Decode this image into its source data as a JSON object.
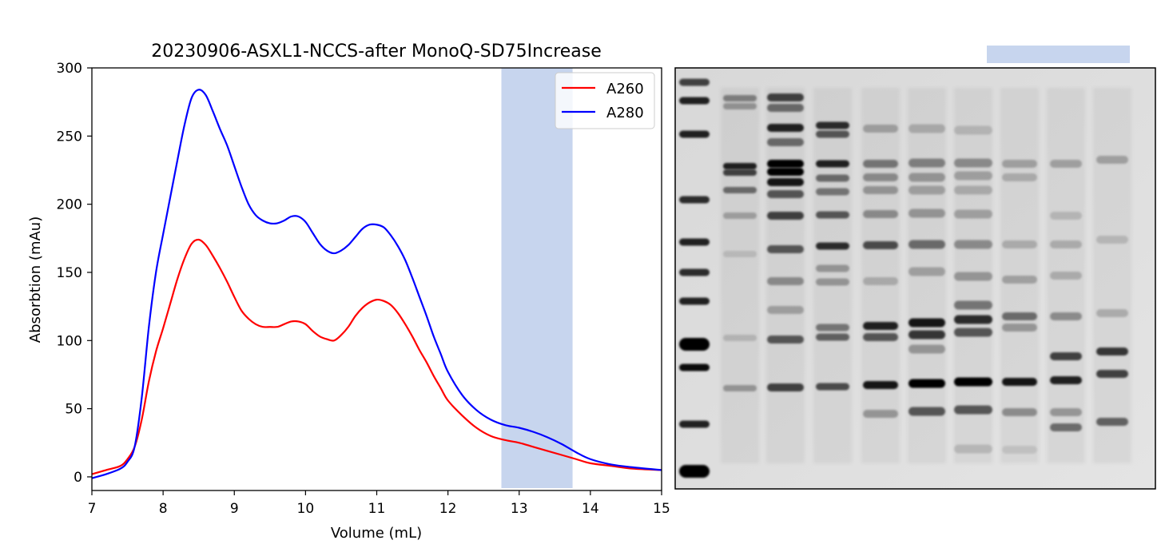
{
  "colors": {
    "a260": "#ff0000",
    "a280": "#0000ff",
    "highlight": "#c7d5ee"
  },
  "chart_data": [
    {
      "type": "line",
      "title": "20230906-ASXL1-NCCS-after MonoQ-SD75Increase",
      "xlabel": "Volume (mL)",
      "ylabel": "Absorbtion (mAu)",
      "xlim": [
        7,
        15
      ],
      "ylim": [
        -10,
        300
      ],
      "x_ticks": [
        7,
        8,
        9,
        10,
        11,
        12,
        13,
        14,
        15
      ],
      "y_ticks": [
        0,
        50,
        100,
        150,
        200,
        250,
        300
      ],
      "grid": false,
      "legend": "top-right",
      "highlight_region": [
        12.75,
        13.75
      ],
      "series": [
        {
          "name": "A260",
          "color": "#ff0000",
          "x": [
            7.0,
            7.2,
            7.4,
            7.5,
            7.6,
            7.7,
            7.8,
            7.9,
            8.0,
            8.1,
            8.2,
            8.3,
            8.4,
            8.5,
            8.6,
            8.7,
            8.8,
            8.9,
            9.0,
            9.1,
            9.2,
            9.3,
            9.4,
            9.5,
            9.6,
            9.7,
            9.8,
            9.9,
            10.0,
            10.1,
            10.2,
            10.3,
            10.4,
            10.5,
            10.6,
            10.7,
            10.8,
            10.9,
            11.0,
            11.1,
            11.2,
            11.3,
            11.4,
            11.5,
            11.6,
            11.7,
            11.8,
            11.9,
            12.0,
            12.2,
            12.4,
            12.6,
            12.8,
            13.0,
            13.2,
            13.4,
            13.6,
            13.8,
            14.0,
            14.3,
            14.6,
            15.0
          ],
          "y": [
            2,
            5,
            8,
            13,
            22,
            42,
            70,
            92,
            109,
            127,
            145,
            160,
            171,
            174,
            170,
            162,
            153,
            143,
            132,
            122,
            116,
            112,
            110,
            110,
            110,
            112,
            114,
            114,
            112,
            107,
            103,
            101,
            100,
            104,
            110,
            118,
            124,
            128,
            130,
            129,
            126,
            120,
            112,
            103,
            93,
            84,
            74,
            65,
            56,
            45,
            36,
            30,
            27,
            25,
            22,
            19,
            16,
            13,
            10,
            8,
            6,
            5
          ]
        },
        {
          "name": "A280",
          "color": "#0000ff",
          "x": [
            7.0,
            7.2,
            7.4,
            7.5,
            7.6,
            7.7,
            7.8,
            7.9,
            8.0,
            8.1,
            8.2,
            8.3,
            8.4,
            8.5,
            8.6,
            8.7,
            8.8,
            8.9,
            9.0,
            9.1,
            9.2,
            9.3,
            9.4,
            9.5,
            9.6,
            9.7,
            9.8,
            9.9,
            10.0,
            10.1,
            10.2,
            10.3,
            10.4,
            10.5,
            10.6,
            10.7,
            10.8,
            10.9,
            11.0,
            11.1,
            11.2,
            11.3,
            11.4,
            11.5,
            11.6,
            11.7,
            11.8,
            11.9,
            12.0,
            12.2,
            12.4,
            12.6,
            12.8,
            13.0,
            13.2,
            13.4,
            13.6,
            13.8,
            14.0,
            14.3,
            14.6,
            15.0
          ],
          "y": [
            -1,
            2,
            6,
            11,
            22,
            58,
            110,
            150,
            178,
            205,
            232,
            258,
            278,
            284,
            280,
            268,
            255,
            243,
            228,
            213,
            200,
            192,
            188,
            186,
            186,
            188,
            191,
            191,
            187,
            179,
            171,
            166,
            164,
            166,
            170,
            176,
            182,
            185,
            185,
            183,
            177,
            169,
            159,
            146,
            132,
            118,
            103,
            90,
            77,
            60,
            49,
            42,
            38,
            36,
            33,
            29,
            24,
            18,
            13,
            9,
            7,
            5
          ]
        }
      ]
    }
  ]
}
